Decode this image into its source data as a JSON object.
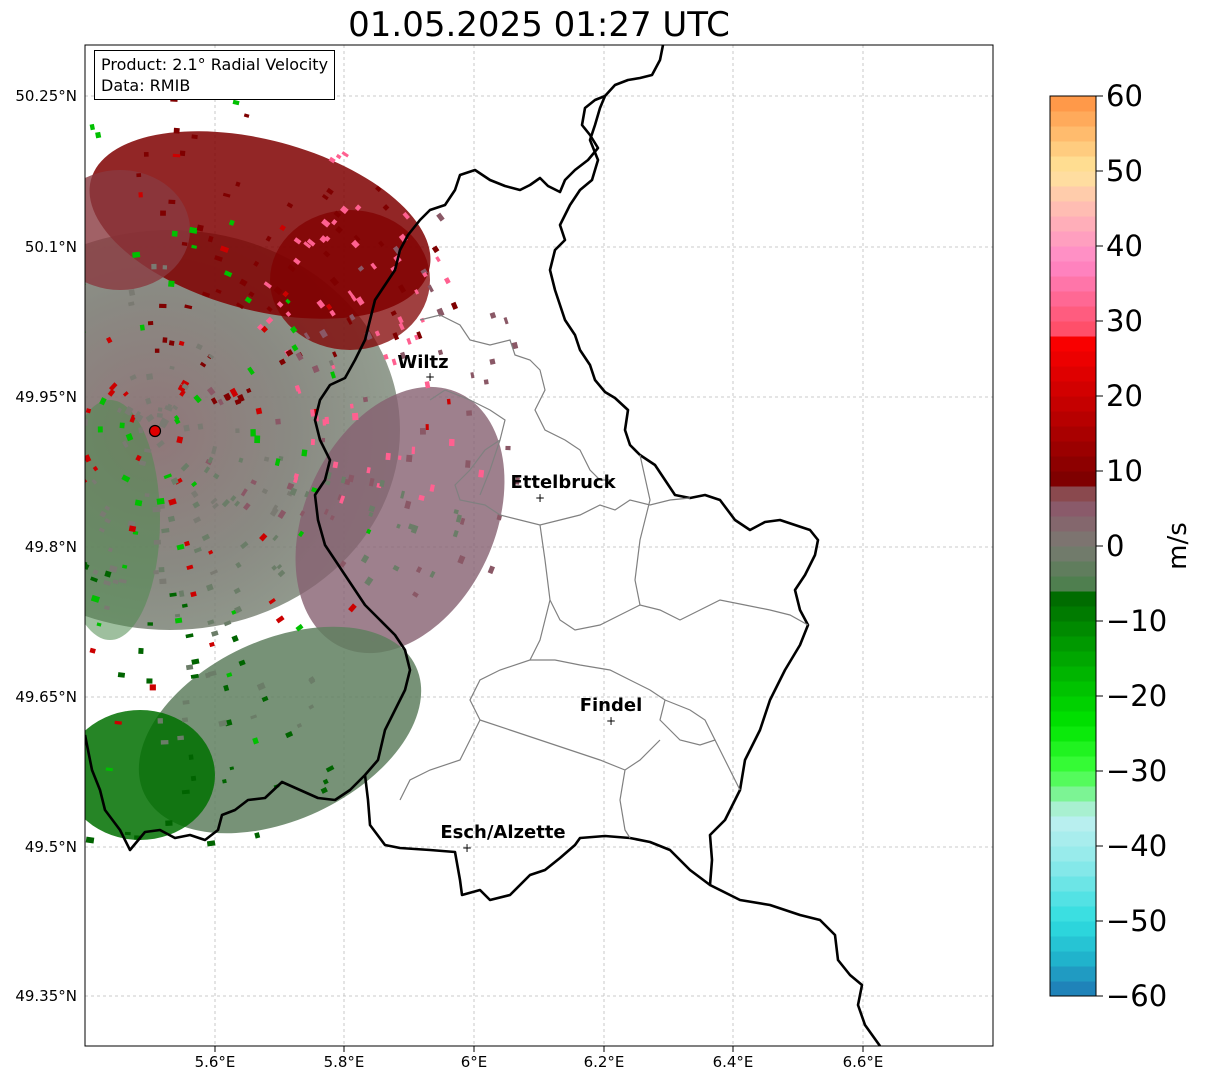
{
  "title": "01.05.2025 01:27 UTC",
  "info": {
    "product": "Product: 2.1° Radial Velocity",
    "data": "Data: RMIB"
  },
  "axes": {
    "x_ticks": [
      "5.6°E",
      "5.8°E",
      "6°E",
      "6.2°E",
      "6.4°E",
      "6.6°E"
    ],
    "y_ticks": [
      "50.25°N",
      "50.1°N",
      "49.95°N",
      "49.8°N",
      "49.65°N",
      "49.5°N",
      "49.35°N"
    ],
    "x_range": [
      5.4,
      6.8
    ],
    "y_range": [
      49.3,
      50.3
    ]
  },
  "cities": [
    {
      "name": "Wiltz",
      "lon": 5.93,
      "lat": 49.97
    },
    {
      "name": "Ettelbruck",
      "lon": 6.1,
      "lat": 49.85
    },
    {
      "name": "Findel",
      "lon": 6.21,
      "lat": 49.63
    },
    {
      "name": "Esch/Alzette",
      "lon": 5.99,
      "lat": 49.5
    }
  ],
  "radar_site": {
    "lon": 5.505,
    "lat": 49.915,
    "color": "#e00000"
  },
  "colorbar": {
    "label": "m/s",
    "min": -60,
    "max": 60,
    "ticks": [
      "60",
      "50",
      "40",
      "30",
      "20",
      "10",
      "0",
      "−10",
      "−20",
      "−30",
      "−40",
      "−50",
      "−60"
    ],
    "stops": [
      {
        "v": -60,
        "c": "#1f77b4"
      },
      {
        "v": -55,
        "c": "#20b3cc"
      },
      {
        "v": -50,
        "c": "#2fdde0"
      },
      {
        "v": -42,
        "c": "#90eaea"
      },
      {
        "v": -36,
        "c": "#c0f0f0"
      },
      {
        "v": -34,
        "c": "#90f0b0"
      },
      {
        "v": -30,
        "c": "#40ff40"
      },
      {
        "v": -24,
        "c": "#00e600"
      },
      {
        "v": -14,
        "c": "#00a000"
      },
      {
        "v": -6,
        "c": "#006400"
      },
      {
        "v": -5,
        "c": "#4f7f4f"
      },
      {
        "v": 0,
        "c": "#7a7a72"
      },
      {
        "v": 5,
        "c": "#8a5a6a"
      },
      {
        "v": 8,
        "c": "#8a4040"
      },
      {
        "v": 9,
        "c": "#7f0000"
      },
      {
        "v": 20,
        "c": "#cc0000"
      },
      {
        "v": 28,
        "c": "#ff0000"
      },
      {
        "v": 29,
        "c": "#ff4f6a"
      },
      {
        "v": 38,
        "c": "#ff88c8"
      },
      {
        "v": 46,
        "c": "#ffc4b0"
      },
      {
        "v": 50,
        "c": "#ffe59a"
      },
      {
        "v": 60,
        "c": "#ff9040"
      }
    ]
  }
}
